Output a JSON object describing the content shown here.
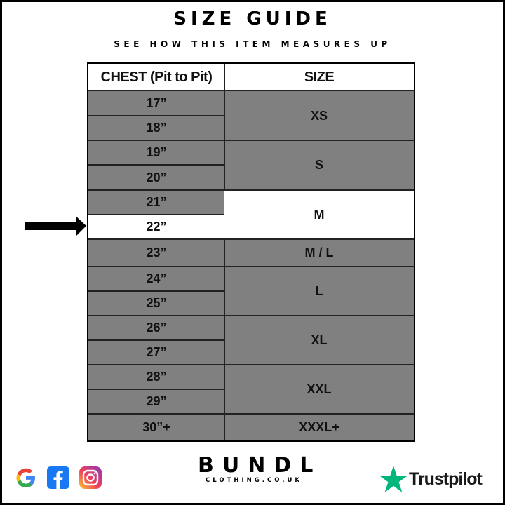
{
  "header": {
    "title": "SIZE GUIDE",
    "subtitle": "SEE HOW THIS ITEM MEASURES UP"
  },
  "table": {
    "headers": [
      "CHEST (Pit to Pit)",
      "SIZE"
    ],
    "chest": [
      "17”",
      "18”",
      "19”",
      "20”",
      "21”",
      "22”",
      "23”",
      "24”",
      "25”",
      "26”",
      "27”",
      "28”",
      "29”",
      "30”+"
    ],
    "sizes": [
      {
        "label": "XS",
        "rows": [
          0,
          1
        ]
      },
      {
        "label": "S",
        "rows": [
          2,
          3
        ]
      },
      {
        "label": "M",
        "rows": [
          4,
          5
        ],
        "highlighted": true
      },
      {
        "label": "M / L",
        "rows": [
          6,
          6
        ]
      },
      {
        "label": "L",
        "rows": [
          7,
          8
        ]
      },
      {
        "label": "XL",
        "rows": [
          9,
          10
        ]
      },
      {
        "label": "XXL",
        "rows": [
          11,
          12
        ]
      },
      {
        "label": "XXXL+",
        "rows": [
          13,
          13
        ]
      }
    ],
    "highlighted_chest": "22”",
    "colors": {
      "row": "#808080",
      "highlight": "#ffffff",
      "border": "#222222"
    }
  },
  "footer": {
    "brand": "BUNDL",
    "brand_sub": "CLOTHING.CO.UK",
    "social_icons": [
      "google-icon",
      "facebook-icon",
      "instagram-icon"
    ],
    "trustpilot": "Trustpilot",
    "trustpilot_color": "#00b67a"
  }
}
